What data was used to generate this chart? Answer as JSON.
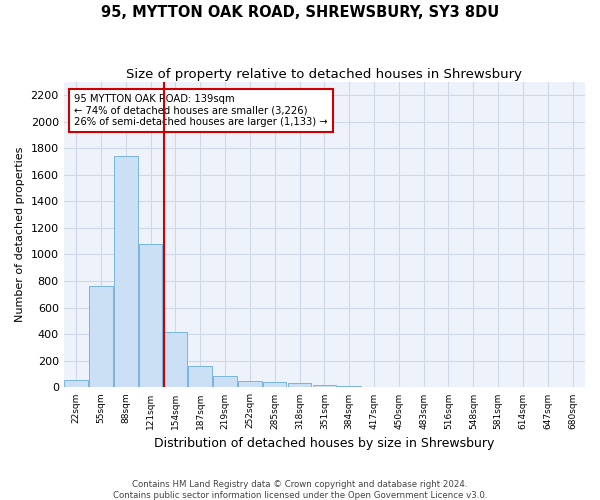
{
  "title": "95, MYTTON OAK ROAD, SHREWSBURY, SY3 8DU",
  "subtitle": "Size of property relative to detached houses in Shrewsbury",
  "xlabel": "Distribution of detached houses by size in Shrewsbury",
  "ylabel": "Number of detached properties",
  "bin_labels": [
    "22sqm",
    "55sqm",
    "88sqm",
    "121sqm",
    "154sqm",
    "187sqm",
    "219sqm",
    "252sqm",
    "285sqm",
    "318sqm",
    "351sqm",
    "384sqm",
    "417sqm",
    "450sqm",
    "483sqm",
    "516sqm",
    "548sqm",
    "581sqm",
    "614sqm",
    "647sqm",
    "680sqm"
  ],
  "bar_values": [
    55,
    760,
    1740,
    1080,
    420,
    160,
    85,
    50,
    40,
    30,
    20,
    10,
    5,
    2,
    1,
    0,
    0,
    0,
    0,
    0,
    0
  ],
  "bar_color": "#cce0f5",
  "bar_edgecolor": "#6aaed6",
  "annotation_line1": "95 MYTTON OAK ROAD: 139sqm",
  "annotation_line2": "← 74% of detached houses are smaller (3,226)",
  "annotation_line3": "26% of semi-detached houses are larger (1,133) →",
  "annotation_box_color": "#ffffff",
  "annotation_box_edgecolor": "#cc0000",
  "red_line_color": "#cc0000",
  "grid_color": "#d0d8e8",
  "background_color": "#eef2fa",
  "footer_line1": "Contains HM Land Registry data © Crown copyright and database right 2024.",
  "footer_line2": "Contains public sector information licensed under the Open Government Licence v3.0.",
  "ylim": [
    0,
    2300
  ],
  "title_fontsize": 10.5,
  "subtitle_fontsize": 9.5,
  "ylabel_fontsize": 8,
  "xlabel_fontsize": 9
}
